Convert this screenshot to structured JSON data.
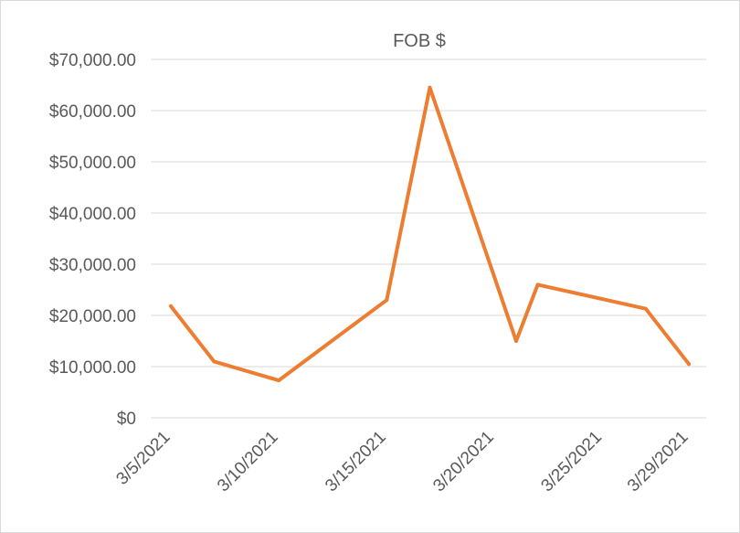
{
  "chart_data": {
    "type": "line",
    "title": "FOB $",
    "xlabel": "",
    "ylabel": "",
    "x_tick_labels": [
      "3/5/2021",
      "3/10/2021",
      "3/15/2021",
      "3/20/2021",
      "3/25/2021",
      "3/29/2021"
    ],
    "x_tick_dates": [
      "2021-03-05",
      "2021-03-10",
      "2021-03-15",
      "2021-03-20",
      "2021-03-25",
      "2021-03-29"
    ],
    "y_tick_labels": [
      "$0",
      "$10,000.00",
      "$20,000.00",
      "$30,000.00",
      "$40,000.00",
      "$50,000.00",
      "$60,000.00",
      "$70,000.00"
    ],
    "ylim": [
      0,
      70000
    ],
    "xlim": [
      "2021-03-05",
      "2021-03-29"
    ],
    "grid": true,
    "legend": "none",
    "series": [
      {
        "color": "#ED7D31",
        "points": [
          {
            "x": "2021-03-05",
            "y": 21800
          },
          {
            "x": "2021-03-07",
            "y": 11000
          },
          {
            "x": "2021-03-10",
            "y": 7300
          },
          {
            "x": "2021-03-15",
            "y": 23000
          },
          {
            "x": "2021-03-17",
            "y": 64500
          },
          {
            "x": "2021-03-21",
            "y": 15000
          },
          {
            "x": "2021-03-22",
            "y": 26000
          },
          {
            "x": "2021-03-27",
            "y": 21300
          },
          {
            "x": "2021-03-29",
            "y": 10500
          }
        ]
      }
    ]
  }
}
